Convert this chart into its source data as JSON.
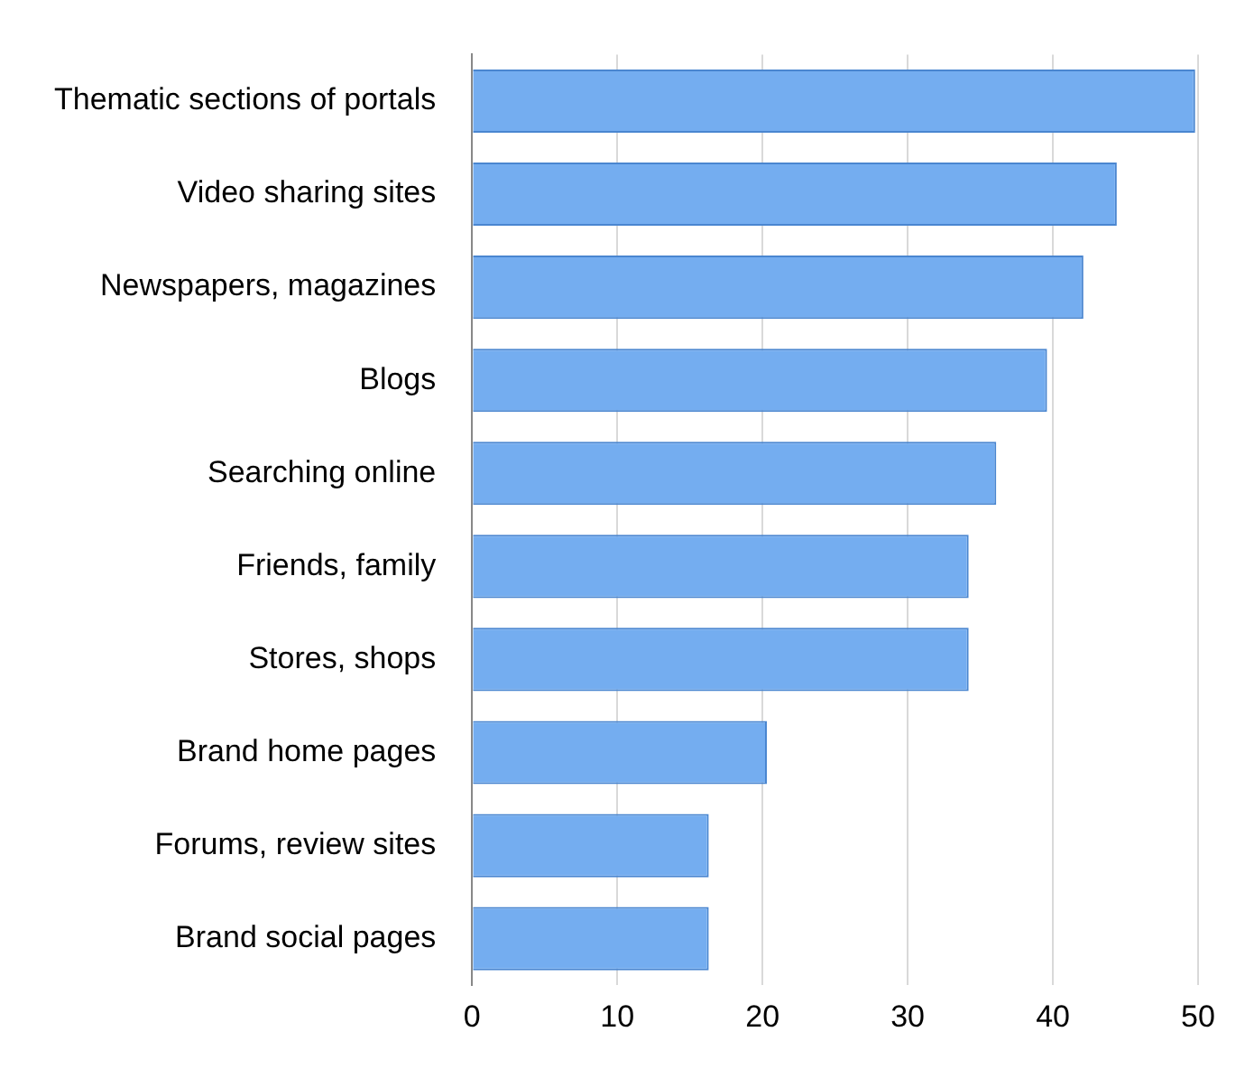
{
  "chart_data": {
    "type": "bar",
    "orientation": "horizontal",
    "categories": [
      "Thematic sections of portals",
      "Video sharing sites",
      "Newspapers, magazines",
      "Blogs",
      "Searching online",
      "Friends, family",
      "Stores, shops",
      "Brand home pages",
      "Forums, review sites",
      "Brand social pages"
    ],
    "values": [
      49.8,
      44.4,
      42.1,
      39.6,
      36.1,
      34.2,
      34.2,
      20.3,
      16.3,
      16.3
    ],
    "color": "#74adf0",
    "xlim": [
      0,
      50
    ],
    "xticks": [
      0,
      10,
      20,
      30,
      40,
      50
    ],
    "grid": "x",
    "legend": false
  }
}
